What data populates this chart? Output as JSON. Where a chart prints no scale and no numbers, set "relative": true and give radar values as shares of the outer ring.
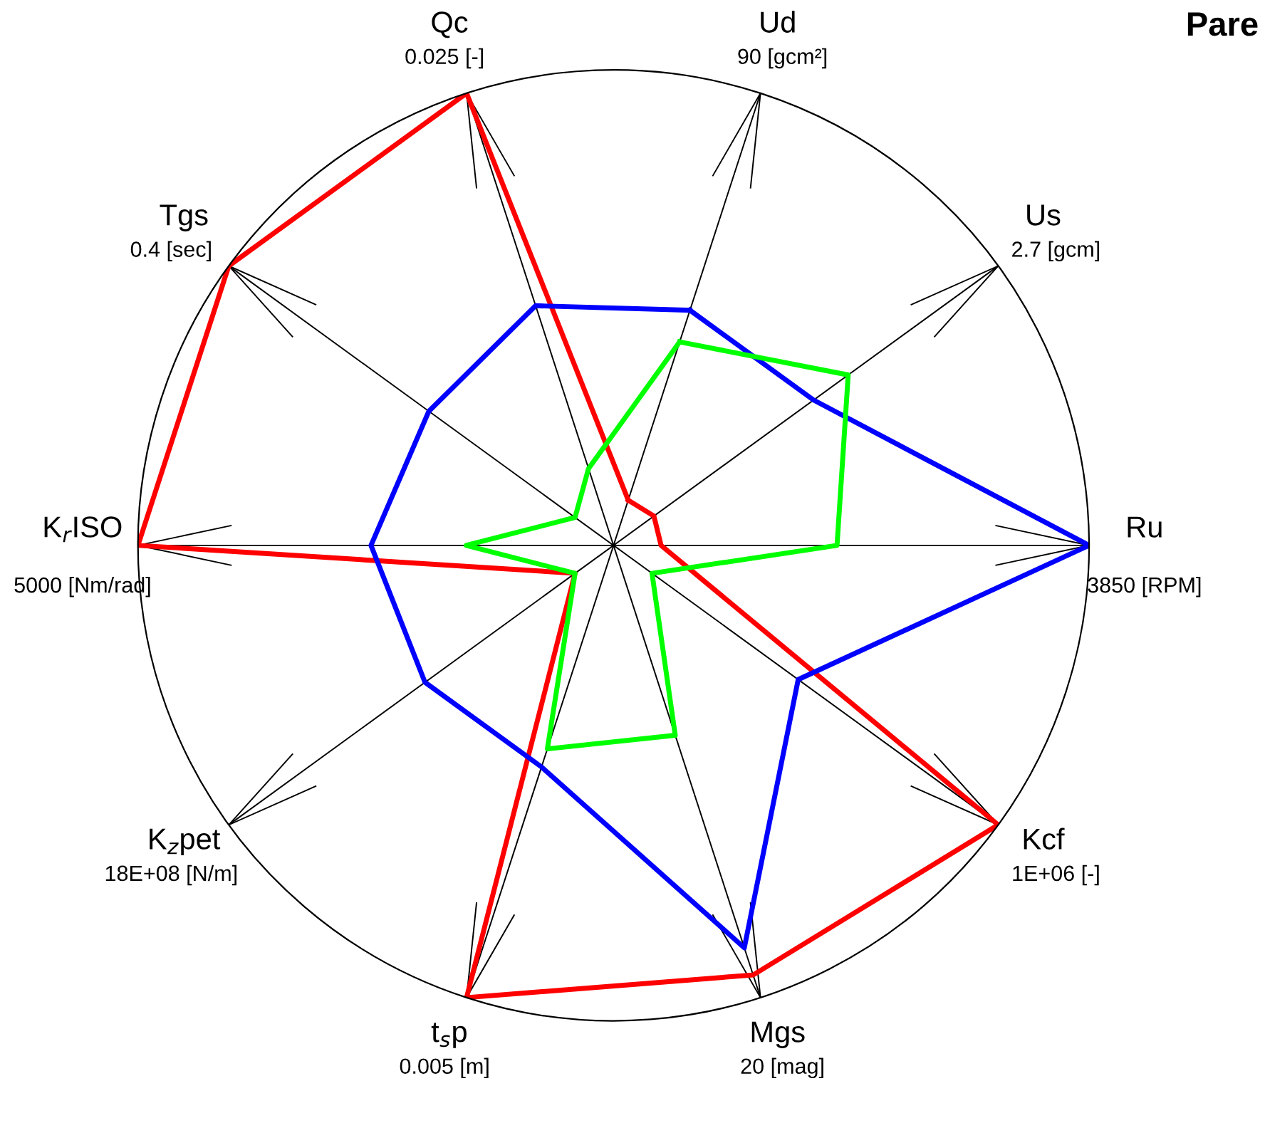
{
  "chart_data": {
    "type": "radar",
    "title": "Pare",
    "relative": true,
    "legend": false,
    "marker": "none",
    "categories": [
      "Ud",
      "Us",
      "Ru",
      "Kcf",
      "Mgs",
      "t$_{s}$p",
      "K$_{z}$pet",
      "K$_{r}$ISO",
      "Tgs",
      "Qc"
    ],
    "annotations": [
      "90 [gcm²]",
      "2.7 [gcm]",
      "3850 [RPM]",
      "1E+06 [-]",
      "20 [mag]",
      "0.005 [m]",
      "18E+08 [N/m]",
      "5000 [Nm/rad]",
      "0.4 [sec]",
      "0.025 [-]"
    ],
    "series": [
      {
        "color": "#ff0000",
        "values": [
          0.1,
          0.105,
          0.1,
          1.0,
          0.95,
          1.0,
          0.1,
          1.0,
          1.0,
          1.0
        ]
      },
      {
        "color": "#0000ff",
        "values": [
          0.52,
          0.52,
          1.0,
          0.48,
          0.89,
          0.49,
          0.49,
          0.51,
          0.48,
          0.53
        ]
      },
      {
        "color": "#00ff00",
        "values": [
          0.45,
          0.61,
          0.47,
          0.1,
          0.42,
          0.45,
          0.1,
          0.31,
          0.1,
          0.17
        ]
      }
    ]
  }
}
